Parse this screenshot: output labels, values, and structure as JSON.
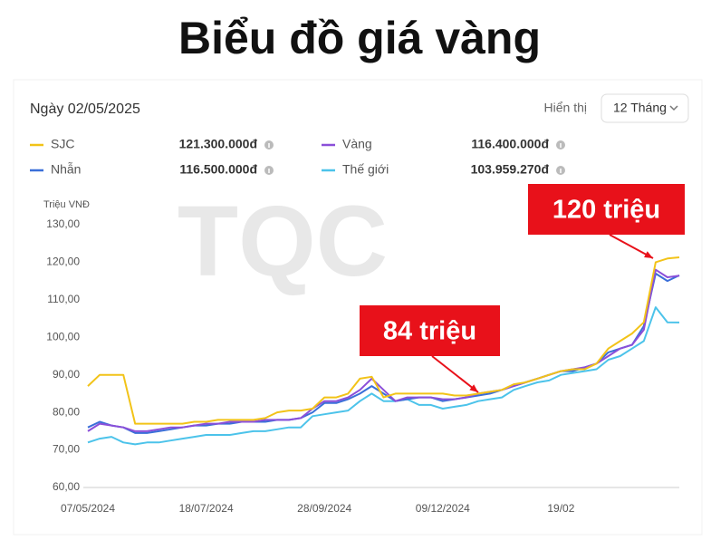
{
  "page_title": "Biểu đồ giá vàng",
  "header": {
    "date": "Ngày 02/05/2025",
    "display_label": "Hiển thị",
    "range": "12 Tháng"
  },
  "watermark": "TQC",
  "chart_data": {
    "type": "line",
    "y_label": "Triệu VNĐ",
    "categories": [
      "07/05/2024",
      null,
      null,
      null,
      null,
      null,
      null,
      null,
      null,
      null,
      "18/07/2024",
      null,
      null,
      null,
      null,
      null,
      null,
      null,
      null,
      null,
      "28/09/2024",
      null,
      null,
      null,
      null,
      null,
      null,
      null,
      null,
      null,
      "09/12/2024",
      null,
      null,
      null,
      null,
      null,
      null,
      null,
      null,
      null,
      "19/02",
      null,
      null,
      null,
      null,
      null,
      null,
      null,
      null,
      null,
      null
    ],
    "ylim": [
      60,
      130
    ],
    "yticks": [
      {
        "value": 60,
        "label": "60,00"
      },
      {
        "value": 70,
        "label": "70,00"
      },
      {
        "value": 80,
        "label": "80,00"
      },
      {
        "value": 90,
        "label": "90,00"
      },
      {
        "value": 100,
        "label": "100,00"
      },
      {
        "value": 110,
        "label": "110,00"
      },
      {
        "value": 120,
        "label": "120,00"
      },
      {
        "value": 130,
        "label": "130,00"
      }
    ],
    "grid": false,
    "series": [
      {
        "name": "SJC",
        "color": "#f2c318",
        "current": "121.300.000đ",
        "values": [
          87,
          90,
          90,
          90,
          77,
          77,
          77,
          77,
          77,
          77.5,
          77.5,
          78,
          78,
          78,
          78,
          78.5,
          80,
          80.5,
          80.5,
          81,
          84,
          84,
          85,
          89,
          89.5,
          84,
          85,
          85,
          85,
          85,
          85,
          84.5,
          84.5,
          85,
          85.5,
          86,
          87.5,
          88,
          89,
          90,
          91,
          91.5,
          91.5,
          93,
          97,
          99,
          101,
          104,
          120,
          121,
          121.3
        ]
      },
      {
        "name": "Vàng",
        "color": "#8b4fd9",
        "current": "116.400.000đ",
        "values": [
          75,
          77,
          76.5,
          76,
          75,
          75,
          75.5,
          76,
          76,
          76.5,
          77,
          77,
          77.5,
          77.5,
          77.5,
          78,
          78,
          78,
          78.5,
          81,
          83,
          83,
          84,
          86,
          89,
          86,
          83,
          84,
          84,
          84,
          83.5,
          83.5,
          84,
          85,
          85.5,
          86,
          87,
          88,
          89,
          90,
          91,
          91.5,
          92,
          93,
          95,
          97,
          98,
          102,
          118,
          116,
          116.4
        ]
      },
      {
        "name": "Nhẫn",
        "color": "#3a6fd8",
        "current": "116.500.000đ",
        "values": [
          76,
          77.5,
          76.5,
          76,
          74.5,
          74.5,
          75,
          75.5,
          76,
          76.5,
          76.5,
          77,
          77,
          77.5,
          77.5,
          77.5,
          78,
          78,
          78.5,
          80,
          82.5,
          82.5,
          83.5,
          85,
          87,
          85,
          83,
          83.5,
          84,
          84,
          83,
          83.5,
          84,
          84.5,
          85,
          86,
          87,
          88,
          89,
          90,
          91,
          91,
          92,
          93,
          96,
          97,
          98,
          103,
          117,
          115,
          116.5
        ]
      },
      {
        "name": "Thế giới",
        "color": "#4cc3ea",
        "current": "103.959.270đ",
        "values": [
          72,
          73,
          73.5,
          72,
          71.5,
          72,
          72,
          72.5,
          73,
          73.5,
          74,
          74,
          74,
          74.5,
          75,
          75,
          75.5,
          76,
          76,
          79,
          79.5,
          80,
          80.5,
          83,
          85,
          83,
          83,
          83.5,
          82,
          82,
          81,
          81.5,
          82,
          83,
          83.5,
          84,
          86,
          87,
          88,
          88.5,
          90,
          90.5,
          91,
          91.5,
          94,
          95,
          97,
          99,
          108,
          104,
          103.959
        ]
      }
    ],
    "annotations": [
      {
        "text": "120 triệu"
      },
      {
        "text": "84 triệu"
      }
    ]
  }
}
